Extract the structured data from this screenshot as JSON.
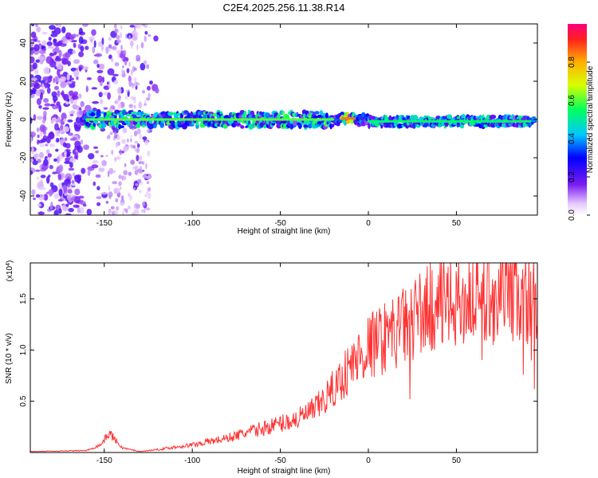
{
  "title": "C2E4.2025.256.11.38.R14",
  "colors": {
    "snr_line": "#ff3333",
    "axis": "#000000"
  },
  "chart_data": [
    {
      "type": "heatmap",
      "name": "spectrogram",
      "xlabel": "Height of straight line (km)",
      "ylabel": "Frequency (Hz)",
      "xlim": [
        -192,
        96
      ],
      "ylim": [
        -50,
        50
      ],
      "xticks": [
        -150,
        -100,
        -50,
        0,
        50
      ],
      "yticks": [
        -40,
        -20,
        0,
        20,
        40
      ],
      "colorbar": {
        "label": "Normalized spectral amplitude",
        "range": [
          0.0,
          1.0
        ],
        "ticks": [
          "0.0",
          "0.2",
          "0.4",
          "0.6",
          "0.8"
        ],
        "tick_values": [
          0.0,
          0.2,
          0.4,
          0.6,
          0.8
        ]
      },
      "ridge_center_hz": 0,
      "ridge_segments": [
        {
          "x_start": -160,
          "x_end": -20,
          "freq_hz": 0,
          "peak_amplitude": 0.6
        },
        {
          "x_start": -15,
          "x_end": -8,
          "freq_hz": 0.5,
          "peak_amplitude": 0.85
        },
        {
          "x_start": 0,
          "x_end": 92,
          "freq_hz": -1,
          "peak_amplitude": 0.55
        }
      ],
      "noise_region_km": [
        -192,
        -120
      ]
    },
    {
      "type": "line",
      "name": "snr",
      "xlabel": "Height of straight line (km)",
      "ylabel": "SNR (10 * v/v)",
      "scale_label": "(x10",
      "scale_exp": "4",
      "xlim": [
        -192,
        96
      ],
      "ylim": [
        0,
        1.85
      ],
      "xticks": [
        -150,
        -100,
        -50,
        0,
        50
      ],
      "yticks": [
        0.5,
        1.0,
        1.5
      ],
      "ytick_labels": [
        "0.5",
        "1.0",
        "1.5"
      ],
      "series": [
        {
          "name": "SNR",
          "x": [
            -192,
            -160,
            -152,
            -147,
            -140,
            -130,
            -120,
            -100,
            -80,
            -60,
            -40,
            -30,
            -20,
            -10,
            0,
            10,
            20,
            30,
            40,
            50,
            60,
            70,
            80,
            90,
            96
          ],
          "y": [
            0.01,
            0.02,
            0.08,
            0.2,
            0.05,
            0.01,
            0.03,
            0.08,
            0.15,
            0.25,
            0.35,
            0.45,
            0.65,
            0.9,
            1.1,
            1.2,
            1.3,
            1.45,
            1.55,
            1.55,
            1.6,
            1.62,
            1.65,
            1.6,
            1.55
          ]
        }
      ]
    }
  ]
}
